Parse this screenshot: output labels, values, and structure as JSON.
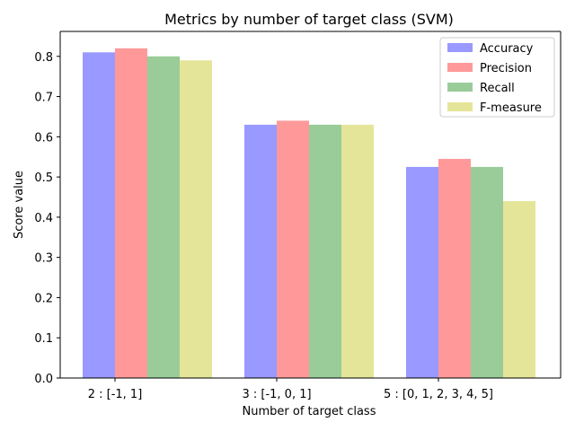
{
  "chart_data": {
    "type": "bar",
    "title": "Metrics by number of target class (SVM)",
    "xlabel": "Number of target class",
    "ylabel": "Score value",
    "categories": [
      "2 : [-1, 1]",
      "3 : [-1, 0, 1]",
      "5 : [0, 1, 2, 3, 4, 5]"
    ],
    "series": [
      {
        "name": "Accuracy",
        "values": [
          0.81,
          0.63,
          0.525
        ],
        "color": "#9999ff"
      },
      {
        "name": "Precision",
        "values": [
          0.82,
          0.64,
          0.545
        ],
        "color": "#ff9999"
      },
      {
        "name": "Recall",
        "values": [
          0.8,
          0.63,
          0.525
        ],
        "color": "#99cc99"
      },
      {
        "name": "F-measure",
        "values": [
          0.79,
          0.63,
          0.44
        ],
        "color": "#e5e599"
      }
    ],
    "ylim": [
      0,
      0.862
    ],
    "yticks": [
      "0.0",
      "0.1",
      "0.2",
      "0.3",
      "0.4",
      "0.5",
      "0.6",
      "0.7",
      "0.8"
    ],
    "grid": false,
    "legend_position": "top-right"
  }
}
